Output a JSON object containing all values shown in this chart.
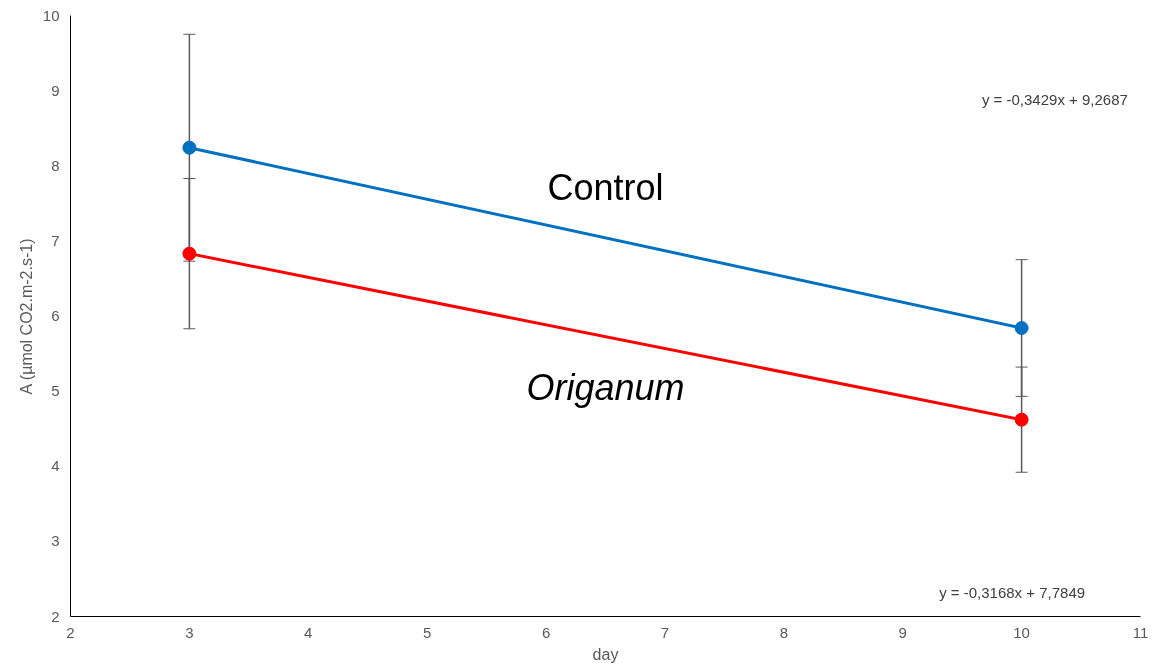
{
  "chart_data": {
    "type": "line",
    "xlabel": "day",
    "ylabel": "A (µmol CO2.m-2.s-1)",
    "x": [
      3,
      10
    ],
    "series": [
      {
        "name": "Control",
        "color": "#0070c0",
        "values": [
          8.24,
          5.84
        ],
        "errors": [
          1.51,
          0.91
        ]
      },
      {
        "name": "Origanum",
        "color": "#ff0000",
        "values": [
          6.83,
          4.62
        ],
        "errors": [
          1.0,
          0.7
        ]
      }
    ],
    "annotations": [
      "y = -0,3429x + 9,2687",
      "y = -0,3168x + 7,7849"
    ],
    "xlim": [
      2,
      11
    ],
    "xticks": [
      2,
      3,
      4,
      5,
      6,
      7,
      8,
      9,
      10,
      11
    ],
    "ylim": [
      2,
      10
    ],
    "yticks": [
      2,
      3,
      4,
      5,
      6,
      7,
      8,
      9,
      10
    ],
    "grid": false,
    "legend": false,
    "marker": "circle",
    "line_style": "solid"
  }
}
